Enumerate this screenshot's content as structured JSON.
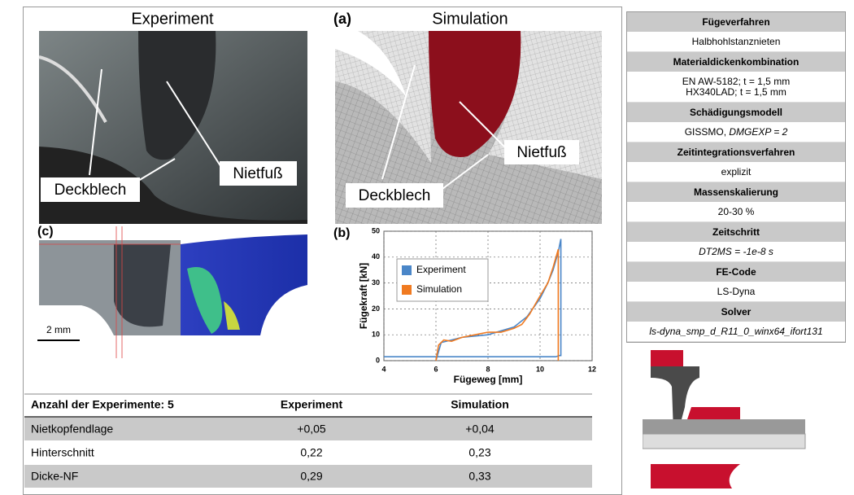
{
  "figure": {
    "experiment_title": "Experiment",
    "panel_a_label": "(a)",
    "simulation_title": "Simulation",
    "photo_label_sheet": "Deckblech",
    "photo_label_foot": "Nietfuß",
    "sim_label_sheet": "Deckblech",
    "sim_label_foot": "Nietfuß",
    "panel_c_label": "(c)",
    "scale_label": "2 mm",
    "panel_b_label": "(b)"
  },
  "chart_data": {
    "type": "line",
    "xlabel": "Fügeweg [mm]",
    "ylabel": "Fügekraft [kN]",
    "xlim": [
      4,
      12
    ],
    "ylim": [
      0,
      50
    ],
    "xticks": [
      4,
      6,
      8,
      10,
      12
    ],
    "yticks": [
      0,
      10,
      20,
      30,
      40,
      50
    ],
    "grid": true,
    "legend": "center left",
    "series": [
      {
        "name": "Experiment",
        "color": "#4a86c8",
        "x": [
          4,
          10.6,
          10.75,
          10.8,
          10.8,
          10.7,
          10.5,
          10.3,
          10,
          9.5,
          9,
          8,
          7,
          6.2,
          6
        ],
        "values": [
          1.5,
          1.5,
          2,
          2,
          47,
          42,
          35,
          30,
          24,
          17,
          13,
          10,
          9,
          7,
          0
        ]
      },
      {
        "name": "Simulation",
        "color": "#f07a20",
        "x": [
          6,
          6.1,
          6.3,
          6.6,
          7,
          7.5,
          8,
          8.5,
          9,
          9.3,
          9.6,
          10,
          10.3,
          10.5,
          10.7,
          10.7
        ],
        "values": [
          0,
          6,
          8,
          7.5,
          9,
          10,
          11,
          11,
          12.5,
          14,
          18,
          25,
          30,
          36,
          43,
          0
        ]
      }
    ]
  },
  "results_table": {
    "header": [
      "Anzahl der  Experimente: 5",
      "Experiment",
      "Simulation"
    ],
    "rows": [
      [
        "Nietkopfendlage",
        "+0,05",
        "+0,04"
      ],
      [
        "Hinterschnitt",
        "0,22",
        "0,23"
      ],
      [
        "Dicke-NF",
        "0,29",
        "0,33"
      ]
    ]
  },
  "process_table": {
    "rows": [
      {
        "label": "Fügeverfahren",
        "value": [
          "Halbhohlstanznieten"
        ]
      },
      {
        "label": "Materialdickenkombination",
        "value": [
          "EN AW-5182; t = 1,5 mm",
          "HX340LAD; t = 1,5 mm"
        ]
      },
      {
        "label": "Schädigungsmodell",
        "value": [
          "GISSMO,"
        ],
        "value_italic": "DMGEXP = 2"
      },
      {
        "label": "Zeitintegrationsverfahren",
        "value": [
          "explizit"
        ]
      },
      {
        "label": "Massenskalierung",
        "value": [
          "20-30 %"
        ]
      },
      {
        "label": "Zeitschritt",
        "value_italic": "DT2MS = -1e-8 s"
      },
      {
        "label": "FE-Code",
        "value": [
          "LS-Dyna"
        ]
      },
      {
        "label": "Solver",
        "value_italic": "ls-dyna_smp_d_R11_0_winx64_ifort131"
      }
    ]
  }
}
